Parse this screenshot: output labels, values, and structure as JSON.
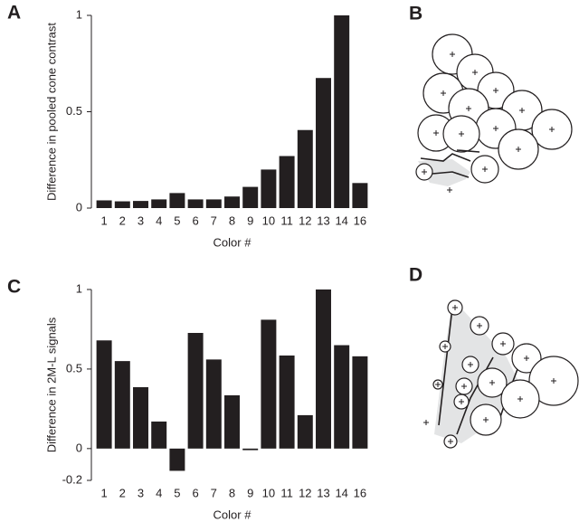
{
  "chart_data": [
    {
      "type": "bar",
      "panel": "A",
      "xlabel": "Color #",
      "ylabel": "Difference in pooled cone contrast",
      "categories": [
        "1",
        "2",
        "3",
        "4",
        "5",
        "6",
        "7",
        "8",
        "9",
        "10",
        "11",
        "12",
        "13",
        "14",
        "16"
      ],
      "values": [
        0.04,
        0.035,
        0.037,
        0.045,
        0.078,
        0.045,
        0.045,
        0.06,
        0.11,
        0.2,
        0.27,
        0.405,
        0.675,
        1.0,
        0.13
      ],
      "color": "#231f20",
      "ylim": [
        0,
        1
      ],
      "yticks": [
        0,
        0.5,
        1
      ]
    },
    {
      "type": "bar",
      "panel": "C",
      "xlabel": "Color #",
      "ylabel": "Difference in 2M-L signals",
      "categories": [
        "1",
        "2",
        "3",
        "4",
        "5",
        "6",
        "7",
        "8",
        "9",
        "10",
        "11",
        "12",
        "13",
        "14",
        "16"
      ],
      "values": [
        0.68,
        0.55,
        0.386,
        0.17,
        -0.14,
        0.727,
        0.56,
        0.335,
        -0.01,
        0.81,
        0.585,
        0.21,
        1.0,
        0.65,
        0.58
      ],
      "color": "#231f20",
      "ylim": [
        -0.2,
        1
      ],
      "yticks": [
        -0.2,
        0,
        0.5,
        1
      ]
    }
  ],
  "diagram_panels": [
    "B",
    "D"
  ]
}
